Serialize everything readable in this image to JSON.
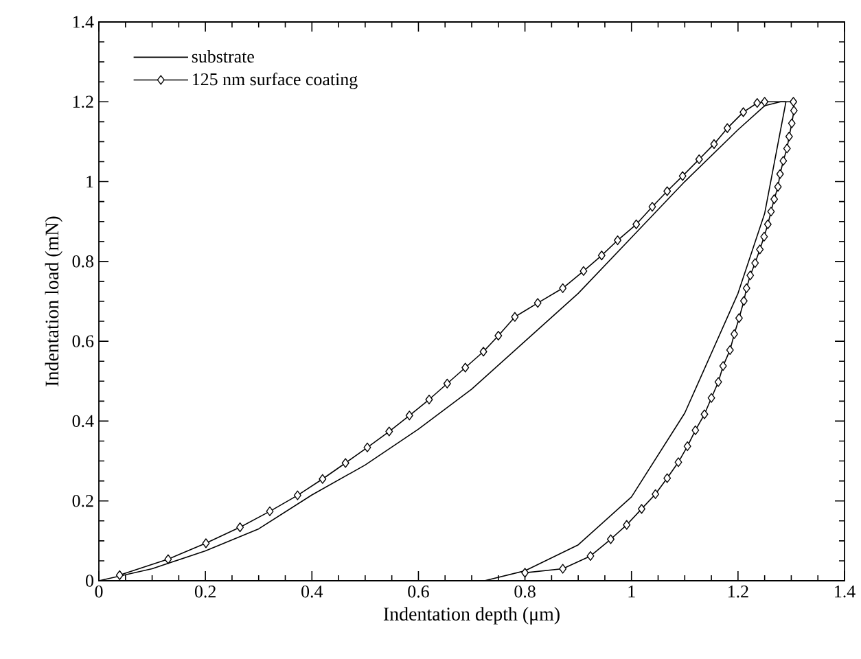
{
  "chart_data": {
    "type": "line",
    "xlabel": "Indentation depth (μm)",
    "ylabel": "Indentation load (mN)",
    "xlim": [
      0,
      1.4
    ],
    "ylim": [
      0,
      1.4
    ],
    "xticks": [
      0,
      0.2,
      0.4,
      0.6,
      0.8,
      1,
      1.2,
      1.4
    ],
    "yticks": [
      0,
      0.2,
      0.4,
      0.6,
      0.8,
      1,
      1.2,
      1.4
    ],
    "grid": false,
    "legend": "top left",
    "series": [
      {
        "name": "substrate",
        "color": "#000000",
        "marker": "none",
        "x": [
          0,
          0.1,
          0.2,
          0.3,
          0.4,
          0.5,
          0.6,
          0.7,
          0.8,
          0.9,
          1.0,
          1.1,
          1.2,
          1.25,
          1.28,
          1.29,
          1.25,
          1.2,
          1.1,
          1.0,
          0.9,
          0.8,
          0.724
        ],
        "values": [
          0,
          0.03,
          0.075,
          0.13,
          0.215,
          0.29,
          0.38,
          0.48,
          0.6,
          0.72,
          0.86,
          1.0,
          1.13,
          1.19,
          1.2,
          1.2,
          0.92,
          0.72,
          0.42,
          0.21,
          0.09,
          0.025,
          0
        ]
      },
      {
        "name": "125 nm surface coating",
        "color": "#000000",
        "marker": "diamond",
        "x": [
          0.039,
          0.13,
          0.201,
          0.265,
          0.321,
          0.373,
          0.42,
          0.463,
          0.504,
          0.545,
          0.583,
          0.62,
          0.654,
          0.688,
          0.722,
          0.75,
          0.781,
          0.824,
          0.871,
          0.91,
          0.944,
          0.974,
          1.009,
          1.039,
          1.067,
          1.096,
          1.127,
          1.155,
          1.18,
          1.21,
          1.236,
          1.25,
          1.304,
          1.305,
          1.301,
          1.296,
          1.292,
          1.285,
          1.279,
          1.275,
          1.268,
          1.262,
          1.256,
          1.249,
          1.241,
          1.232,
          1.223,
          1.216,
          1.211,
          1.202,
          1.193,
          1.185,
          1.172,
          1.163,
          1.15,
          1.137,
          1.12,
          1.105,
          1.088,
          1.067,
          1.045,
          1.019,
          0.991,
          0.961,
          0.923,
          0.871,
          0.8
        ],
        "values": [
          0.014,
          0.054,
          0.094,
          0.134,
          0.174,
          0.214,
          0.255,
          0.295,
          0.334,
          0.374,
          0.414,
          0.454,
          0.494,
          0.534,
          0.574,
          0.614,
          0.661,
          0.696,
          0.733,
          0.776,
          0.815,
          0.853,
          0.893,
          0.937,
          0.976,
          1.014,
          1.056,
          1.094,
          1.134,
          1.174,
          1.197,
          1.2,
          1.2,
          1.178,
          1.146,
          1.113,
          1.083,
          1.052,
          1.019,
          0.987,
          0.956,
          0.925,
          0.893,
          0.862,
          0.83,
          0.796,
          0.765,
          0.733,
          0.701,
          0.658,
          0.618,
          0.578,
          0.538,
          0.498,
          0.458,
          0.417,
          0.377,
          0.337,
          0.297,
          0.257,
          0.217,
          0.18,
          0.14,
          0.104,
          0.062,
          0.03,
          0.02
        ]
      }
    ]
  }
}
